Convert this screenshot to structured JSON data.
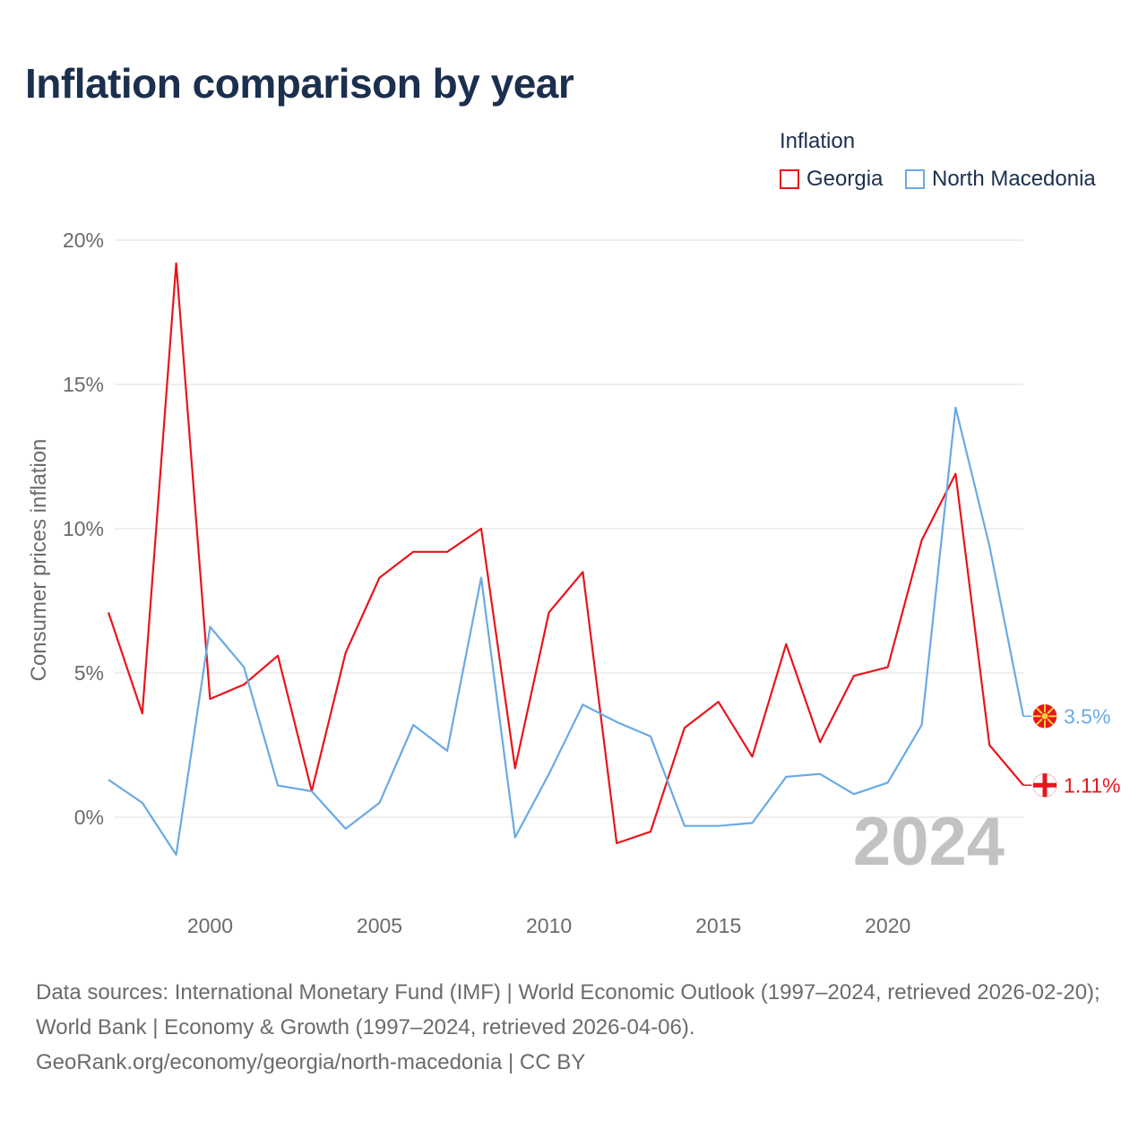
{
  "title": "Inflation comparison by year",
  "legend": {
    "title": "Inflation",
    "items": [
      {
        "label": "Georgia",
        "color": "#e8151b"
      },
      {
        "label": "North Macedonia",
        "color": "#6aaae4"
      }
    ]
  },
  "footer": {
    "sources": "Data sources: International Monetary Fund (IMF) | World Economic Outlook (1997–2024, retrieved 2026-02-20); World Bank | Economy & Growth (1997–2024, retrieved 2026-04-06).",
    "link": "GeoRank.org/economy/georgia/north-macedonia | CC BY"
  },
  "chart_data": {
    "type": "line",
    "title": "Inflation comparison by year",
    "xlabel": "",
    "ylabel": "Consumer prices inflation",
    "xlim": [
      1997,
      2024
    ],
    "ylim": [
      -2,
      20
    ],
    "x_ticks": [
      2000,
      2005,
      2010,
      2015,
      2020
    ],
    "y_ticks": [
      0,
      5,
      10,
      15,
      20
    ],
    "y_tick_labels": [
      "0%",
      "5%",
      "10%",
      "15%",
      "20%"
    ],
    "current_year": "2024",
    "x": [
      1997,
      1998,
      1999,
      2000,
      2001,
      2002,
      2003,
      2004,
      2005,
      2006,
      2007,
      2008,
      2009,
      2010,
      2011,
      2012,
      2013,
      2014,
      2015,
      2016,
      2017,
      2018,
      2019,
      2020,
      2021,
      2022,
      2023,
      2024
    ],
    "series": [
      {
        "name": "Georgia",
        "color": "#e8151b",
        "end_label": "1.11%",
        "values": [
          7.1,
          3.6,
          19.2,
          4.1,
          4.6,
          5.6,
          0.9,
          5.7,
          8.3,
          9.2,
          9.2,
          10.0,
          1.7,
          7.1,
          8.5,
          -0.9,
          -0.5,
          3.1,
          4.0,
          2.1,
          6.0,
          2.6,
          4.9,
          5.2,
          9.6,
          11.9,
          2.5,
          1.11
        ]
      },
      {
        "name": "North Macedonia",
        "color": "#6aaae4",
        "end_label": "3.5%",
        "values": [
          1.3,
          0.5,
          -1.3,
          6.6,
          5.2,
          1.1,
          0.9,
          -0.4,
          0.5,
          3.2,
          2.3,
          8.3,
          -0.7,
          1.5,
          3.9,
          3.3,
          2.8,
          -0.3,
          -0.3,
          -0.2,
          1.4,
          1.5,
          0.8,
          1.2,
          3.2,
          14.2,
          9.4,
          3.5
        ]
      }
    ]
  }
}
